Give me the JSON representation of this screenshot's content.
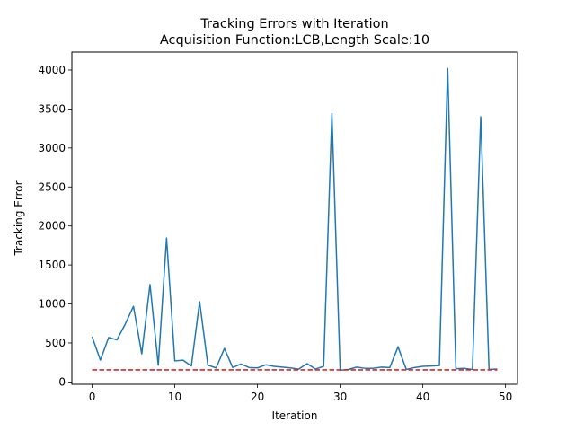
{
  "chart_data": {
    "type": "line",
    "title": "Tracking Errors with Iteration",
    "subtitle": "Acquisition Function:LCB,Length Scale:10",
    "xlabel": "Iteration",
    "ylabel": "Tracking Error",
    "xlim": [
      -2.45,
      51.45
    ],
    "ylim": [
      -30,
      4230
    ],
    "xticks": [
      0,
      10,
      20,
      30,
      40,
      50
    ],
    "yticks": [
      0,
      500,
      1000,
      1500,
      2000,
      2500,
      3000,
      3500,
      4000
    ],
    "grid": false,
    "legend": "none",
    "series": [
      {
        "color": "#1f77b4",
        "style": "solid",
        "x": [
          0,
          1,
          2,
          3,
          4,
          5,
          6,
          7,
          8,
          9,
          10,
          11,
          12,
          13,
          14,
          15,
          16,
          17,
          18,
          19,
          20,
          21,
          22,
          23,
          24,
          25,
          26,
          27,
          28,
          29,
          30,
          31,
          32,
          33,
          34,
          35,
          36,
          37,
          38,
          39,
          40,
          41,
          42,
          43,
          44,
          45,
          46,
          47,
          48,
          49
        ],
        "values": [
          580,
          280,
          570,
          540,
          740,
          970,
          360,
          1250,
          215,
          1845,
          270,
          280,
          205,
          1030,
          215,
          180,
          430,
          185,
          230,
          185,
          180,
          220,
          200,
          190,
          180,
          165,
          235,
          165,
          200,
          3440,
          150,
          160,
          190,
          175,
          175,
          190,
          185,
          450,
          160,
          185,
          200,
          205,
          210,
          4020,
          170,
          175,
          160,
          3400,
          160,
          165
        ]
      },
      {
        "color": "#d62728",
        "style": "dashed",
        "x": [
          0,
          49
        ],
        "values": [
          155,
          155
        ]
      }
    ]
  }
}
